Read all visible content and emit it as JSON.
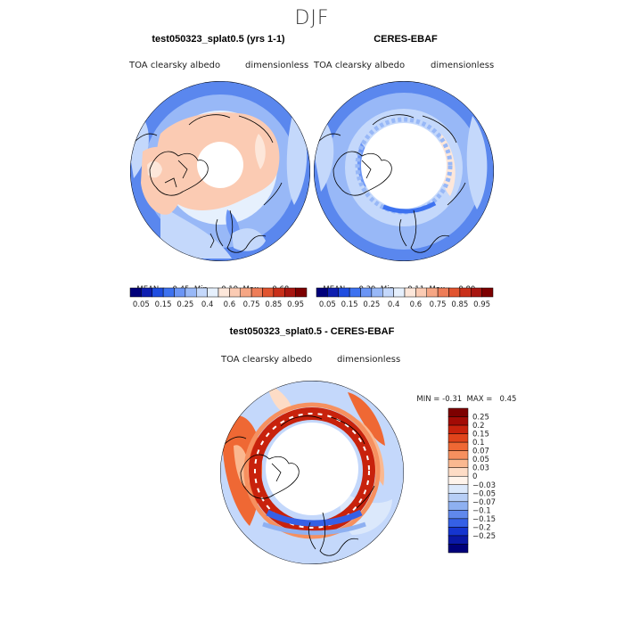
{
  "title": "DJF",
  "panels": [
    {
      "title": "test050323_splat0.5 (yrs 1-1)",
      "left_label": "TOA clearsky albedo",
      "right_label": "dimensionless",
      "stats": {
        "mean_label": "MEAN=",
        "mean": "0.45",
        "min_label": "Min=",
        "min": "0.19",
        "max_label": "Max=",
        "max": "0.68"
      }
    },
    {
      "title": "CERES-EBAF",
      "left_label": "TOA clearsky albedo",
      "right_label": "dimensionless",
      "stats": {
        "mean_label": "MEAN=",
        "mean": "0.39",
        "min_label": "Min=",
        "min": "0.11",
        "max_label": "Max=",
        "max": "0.80"
      }
    }
  ],
  "diff_panel": {
    "title": "test050323_splat0.5 - CERES-EBAF",
    "left_label": "TOA clearsky albedo",
    "right_label": "dimensionless",
    "stats": {
      "min_label": "MIN =",
      "min": "-0.31",
      "max_label": "MAX =",
      "max": "0.45"
    }
  },
  "chart_data": [
    {
      "type": "heatmap",
      "projection": "north-polar-stereographic",
      "title": "test050323_splat0.5 (yrs 1-1)",
      "variable": "TOA clearsky albedo",
      "units": "dimensionless",
      "mean": 0.45,
      "min": 0.19,
      "max": 0.68,
      "colorbar_ticks": [
        "0.05",
        "0.15",
        "0.25",
        "0.4",
        "0.6",
        "0.75",
        "0.85",
        "0.95"
      ],
      "colorbar_colors": [
        "#00007a",
        "#0e1fb0",
        "#1f4de0",
        "#3d72f0",
        "#6b95f5",
        "#98b8f7",
        "#c4d8fb",
        "#e6f0fd",
        "#fde7da",
        "#fbcbb3",
        "#f6a684",
        "#ee7d58",
        "#e1542f",
        "#c9301a",
        "#a81610",
        "#7d0000"
      ]
    },
    {
      "type": "heatmap",
      "projection": "north-polar-stereographic",
      "title": "CERES-EBAF",
      "variable": "TOA clearsky albedo",
      "units": "dimensionless",
      "mean": 0.39,
      "min": 0.11,
      "max": 0.8,
      "colorbar_ticks": [
        "0.05",
        "0.15",
        "0.25",
        "0.4",
        "0.6",
        "0.75",
        "0.85",
        "0.95"
      ],
      "colorbar_colors": [
        "#00007a",
        "#0e1fb0",
        "#1f4de0",
        "#3d72f0",
        "#6b95f5",
        "#98b8f7",
        "#c4d8fb",
        "#e6f0fd",
        "#fde7da",
        "#fbcbb3",
        "#f6a684",
        "#ee7d58",
        "#e1542f",
        "#c9301a",
        "#a81610",
        "#7d0000"
      ]
    },
    {
      "type": "heatmap",
      "projection": "north-polar-stereographic",
      "title": "test050323_splat0.5 - CERES-EBAF",
      "variable": "TOA clearsky albedo",
      "units": "dimensionless",
      "min": -0.31,
      "max": 0.45,
      "colorbar_ticks": [
        "0.25",
        "0.2",
        "0.15",
        "0.1",
        "0.07",
        "0.05",
        "0.03",
        "0",
        "-0.03",
        "-0.05",
        "-0.07",
        "-0.1",
        "-0.15",
        "-0.2",
        "-0.25"
      ],
      "colorbar_colors": [
        "#7d0000",
        "#a30b05",
        "#c8220c",
        "#e0441b",
        "#ef6834",
        "#f6905f",
        "#fab890",
        "#fddcc6",
        "#fff4ec",
        "#dbe8fb",
        "#b7cef6",
        "#8eb0f1",
        "#6088ec",
        "#3560e6",
        "#1535d0",
        "#0a18a6",
        "#00007a"
      ]
    }
  ]
}
